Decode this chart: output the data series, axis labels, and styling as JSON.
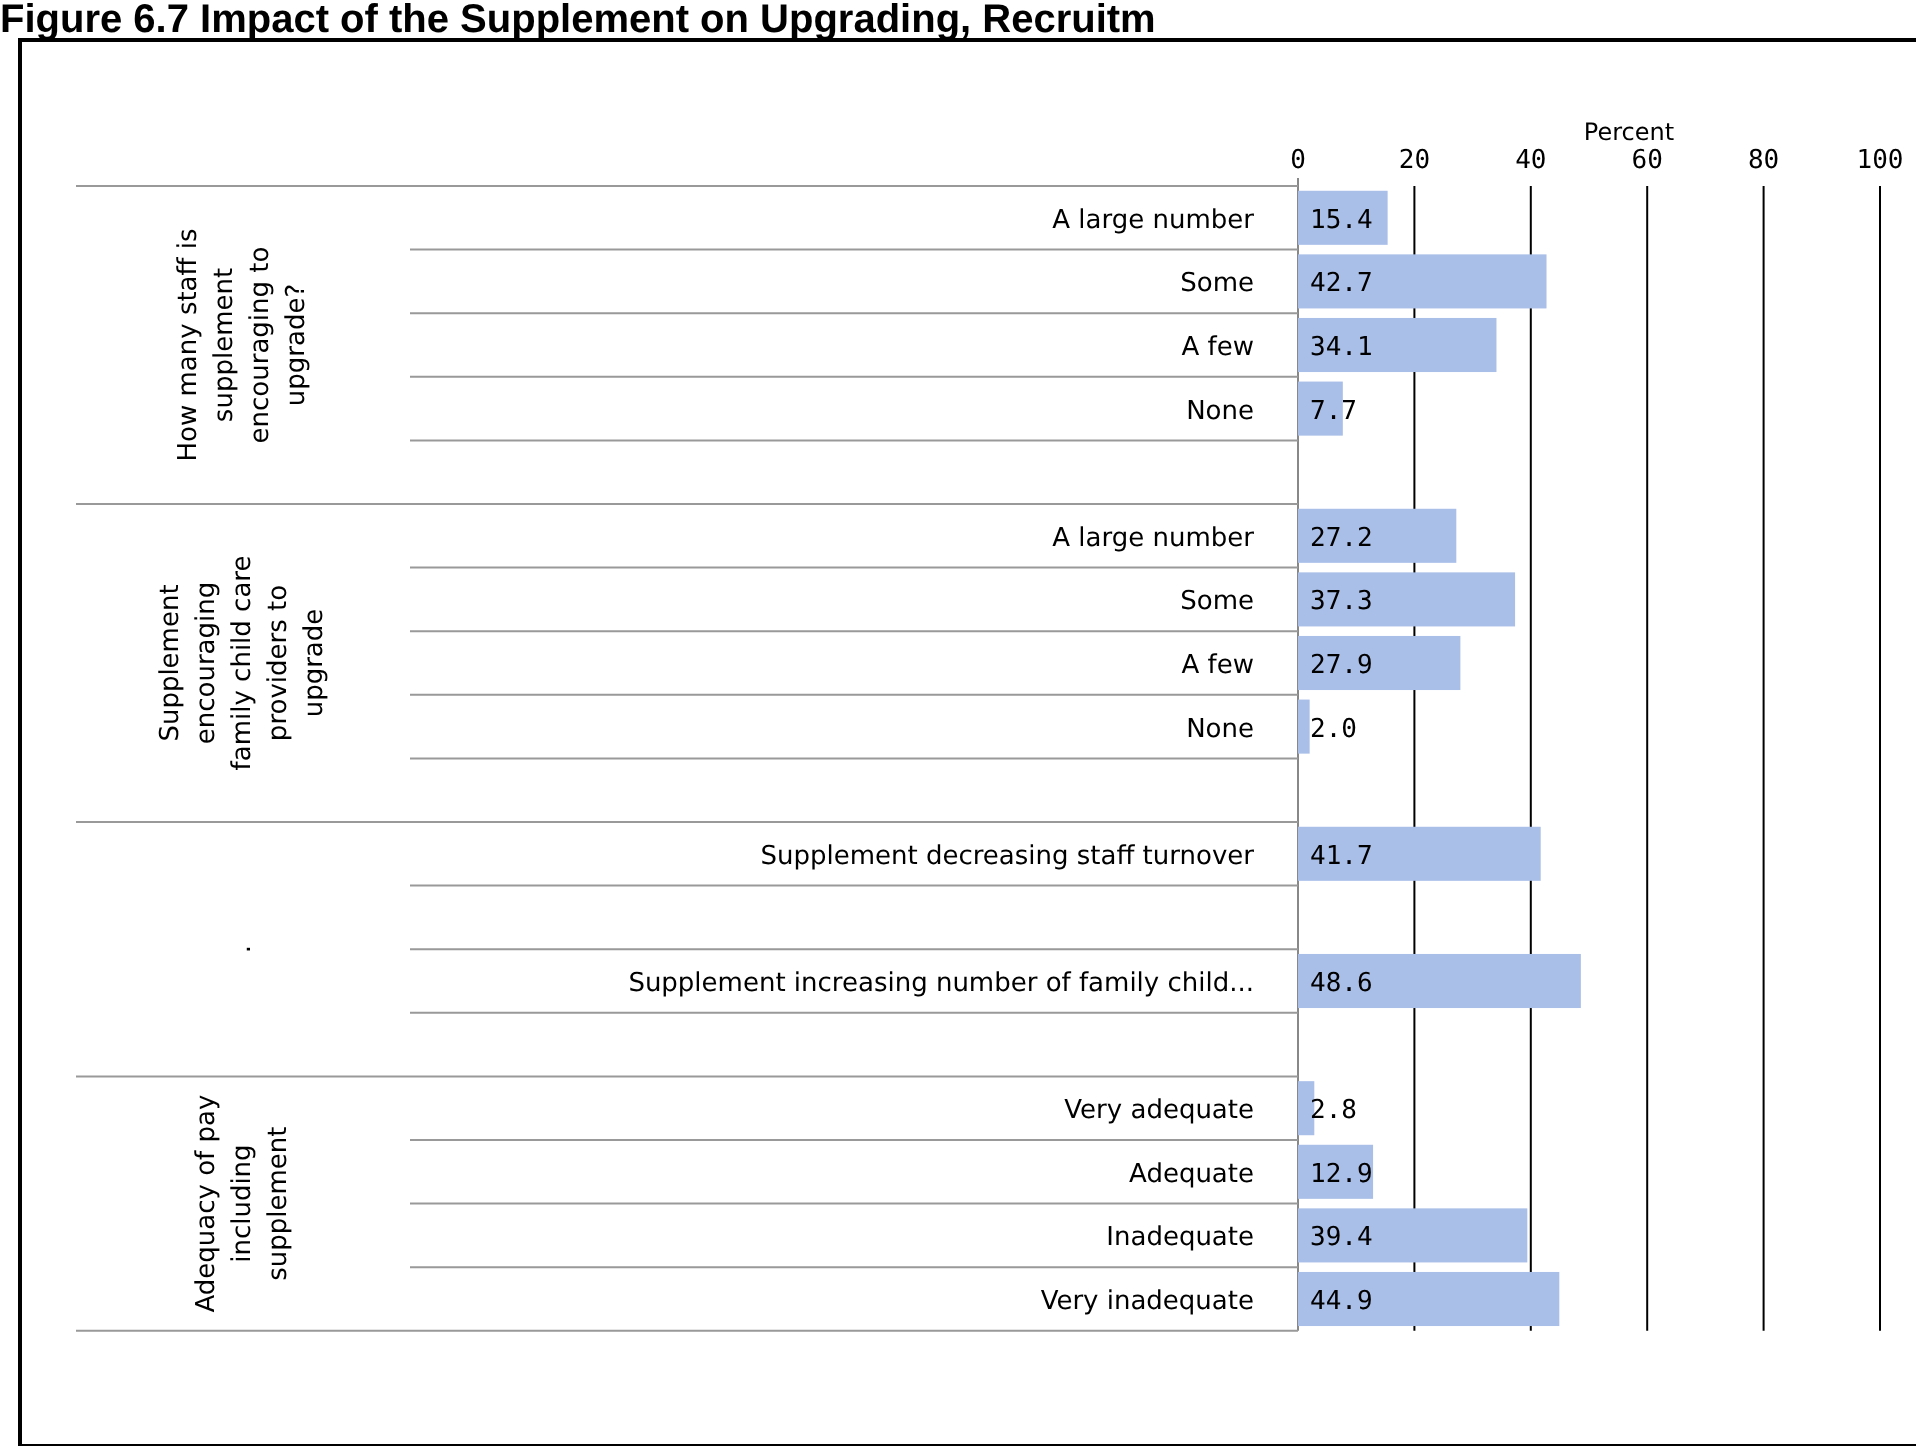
{
  "chart_data": {
    "type": "bar",
    "orientation": "horizontal",
    "title": "Figure 6.7 Impact of the Supplement on Upgrading, Recruitm",
    "xlabel": "Percent",
    "categories": [
      "A large number",
      "Some",
      "A few",
      "None",
      null,
      "A large number",
      "Some",
      "A few",
      "None",
      null,
      "Supplement decreasing  staff turnover",
      null,
      "Supplement increasing  number of family child...",
      null,
      "Very adequate",
      "Adequate",
      "Inadequate",
      "Very inadequate"
    ],
    "values": [
      15.4,
      42.7,
      34.1,
      7.7,
      null,
      27.2,
      37.3,
      27.9,
      2.0,
      null,
      41.7,
      null,
      48.6,
      null,
      2.8,
      12.9,
      39.4,
      44.9
    ],
    "value_labels": [
      "15.4",
      "42.7",
      "34.1",
      "7.7",
      null,
      "27.2",
      "37.3",
      "27.9",
      "2.0",
      null,
      "41.7",
      null,
      "48.6",
      null,
      "2.8",
      "12.9",
      "39.4",
      "44.9"
    ],
    "color": "#a9bfe8",
    "xlim": [
      0,
      100
    ],
    "xticks": [
      0,
      20,
      40,
      60,
      80,
      100
    ],
    "grid": "x",
    "annotations": [
      "How many staff is supplement encouraging to upgrade?",
      "Supplement encouraging family child care providers to upgrade",
      ".",
      "Adequacy of pay including supplement"
    ]
  }
}
